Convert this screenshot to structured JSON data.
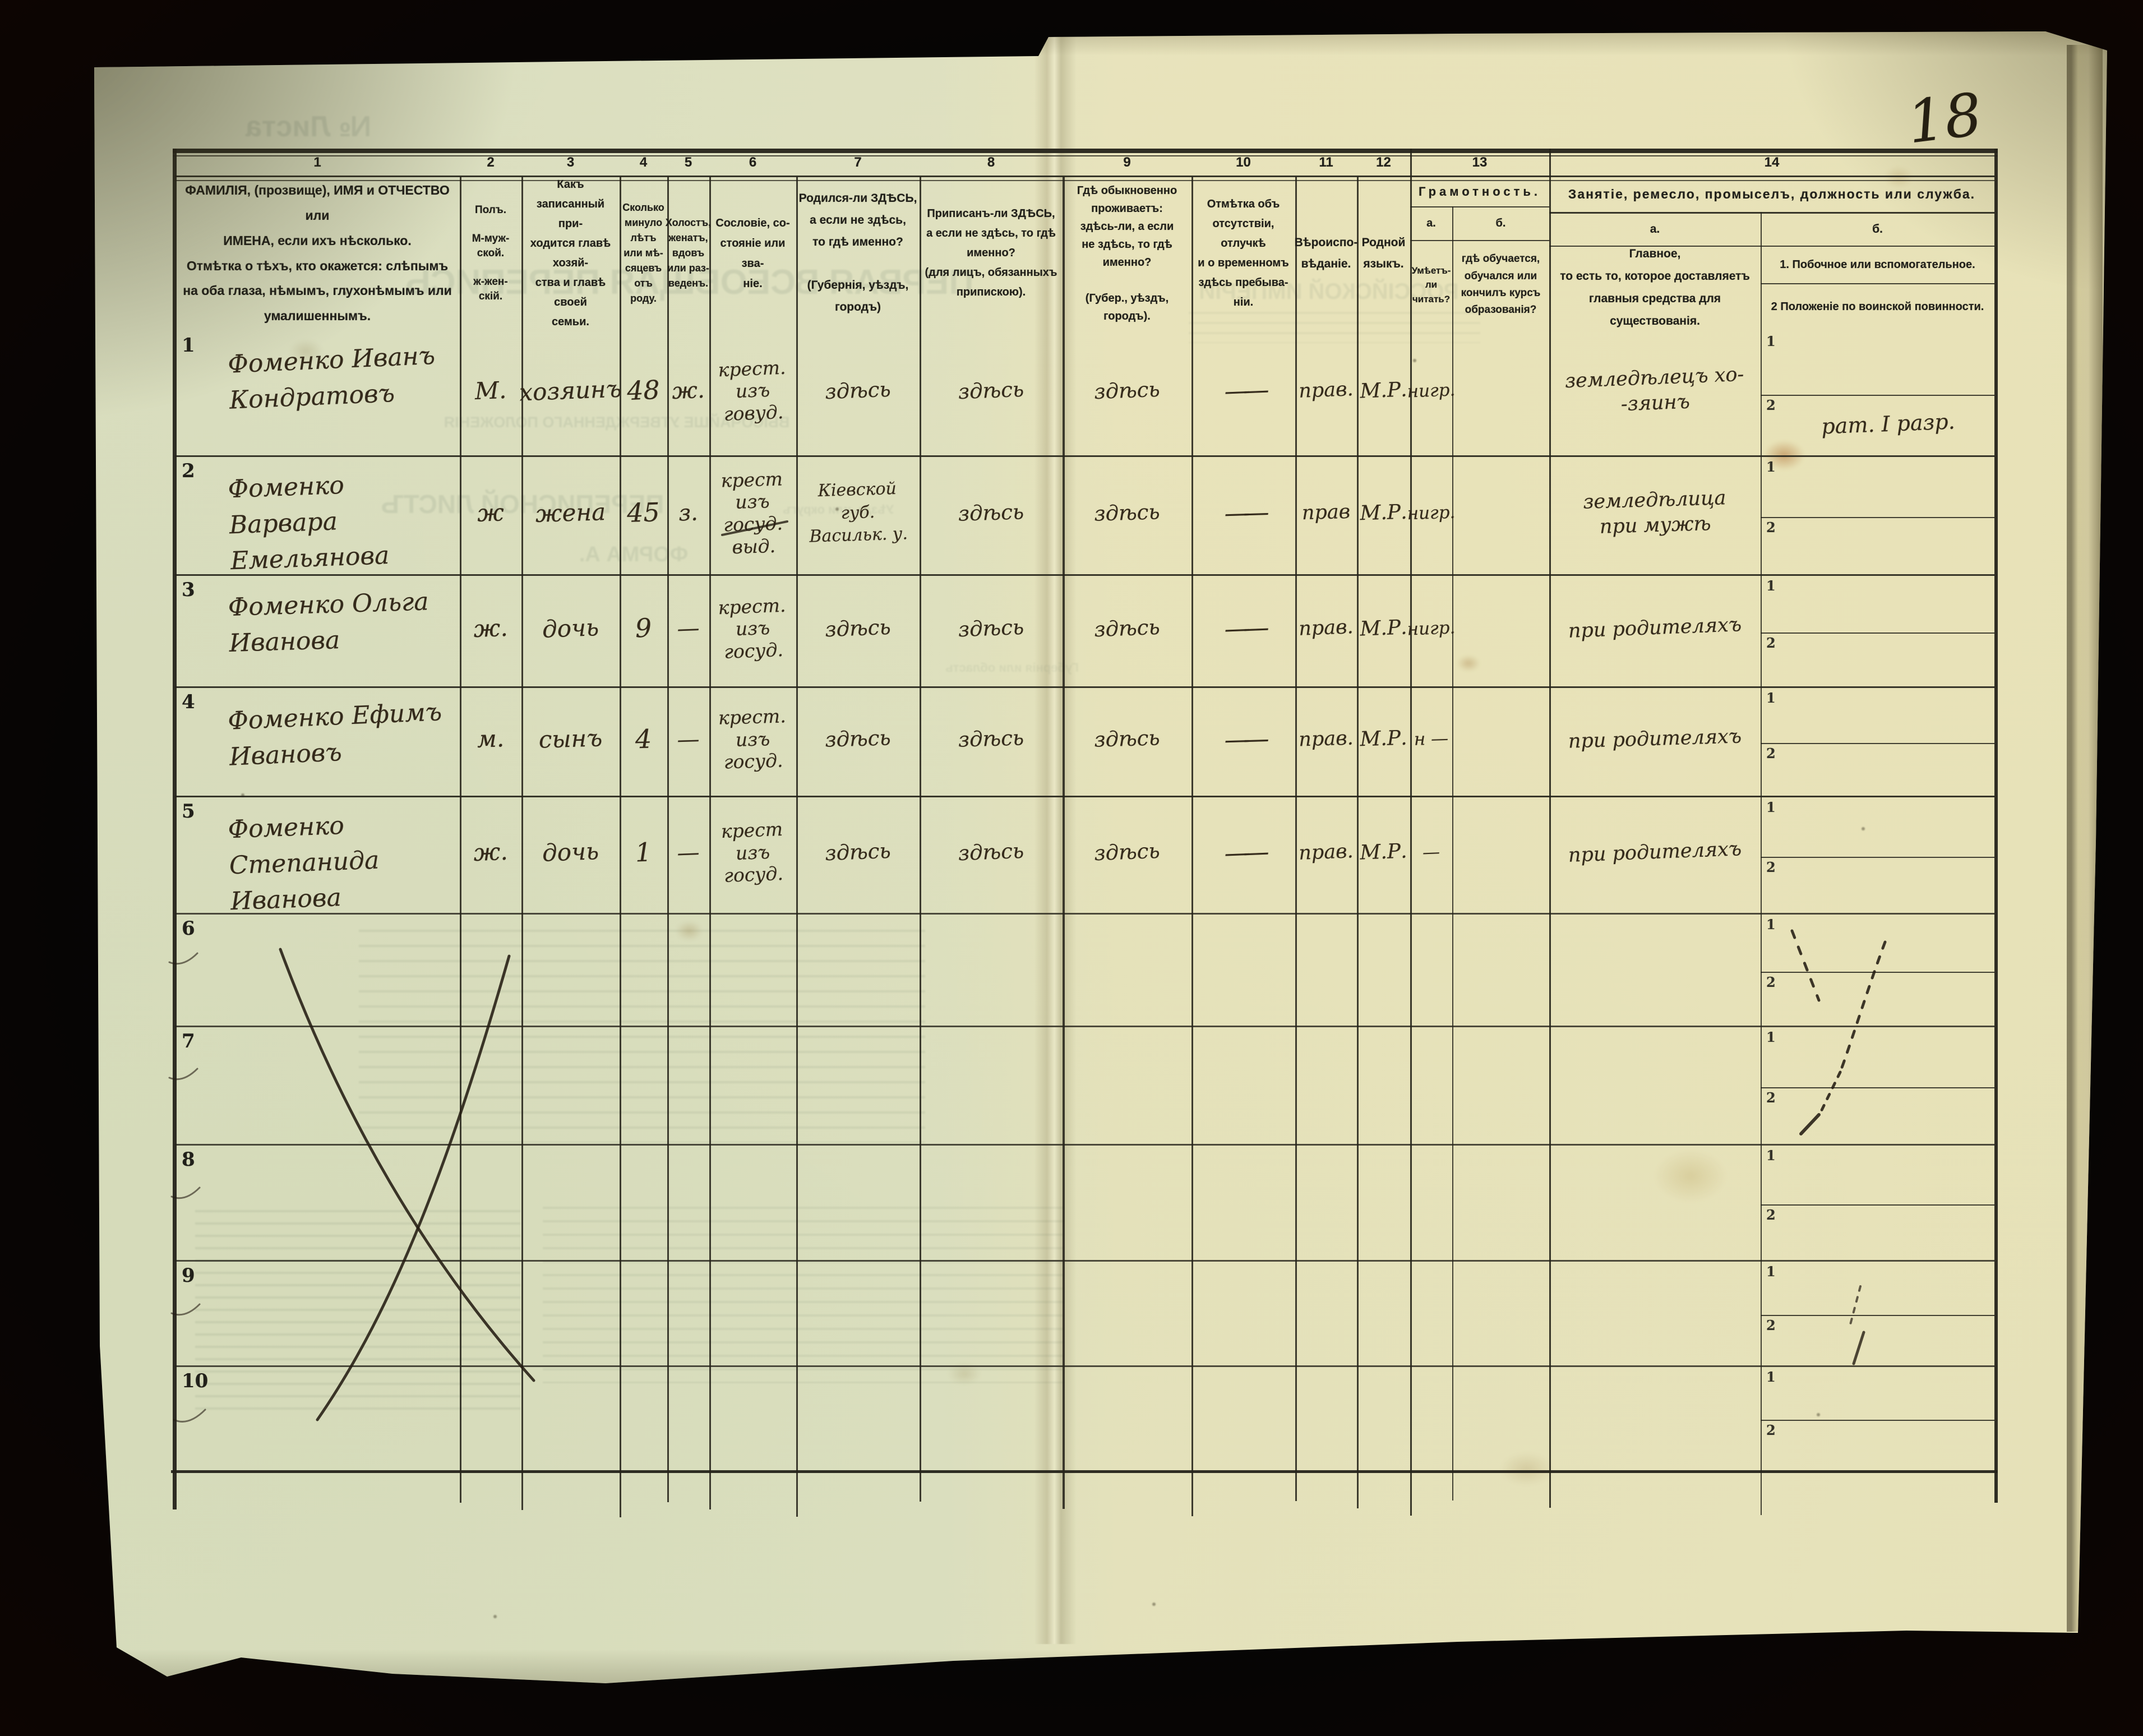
{
  "page": {
    "number": "18"
  },
  "table": {
    "column_numbers": [
      "1",
      "2",
      "3",
      "4",
      "5",
      "6",
      "7",
      "8",
      "9",
      "10",
      "11",
      "12",
      "13",
      "14"
    ],
    "columns": {
      "c1": "ФАМИЛІЯ, (прозвище), ИМЯ и ОТЧЕСТВО или\nИМЕНА, если ихъ нѣсколько.\nОтмѣтка о тѣхъ, кто окажется: слѣпымъ\nна оба глаза, нѣмымъ, глухонѣмымъ или\nумалишеннымъ.",
      "c2": "Полъ.\n\nМ-муж-\nской.\n\nж-жен-\nскій.",
      "c3": "Какъ записанный при-\nходится главѣ хозяй-\nства и главѣ своей\nсемьи.",
      "c4": "Сколько\nминуло\nлѣтъ\nили мѣ-\nсяцевъ\nотъ роду.",
      "c5": "Холостъ,\nженатъ,\nвдовъ\nили раз-\nведенъ.",
      "c6": "Сословіе, со-\nстояніе или зва-\nніе.",
      "c7": "Родился-ли ЗДѢСЬ,\nа если не здѣсь,\nто гдѣ именно?\n\n(Губернія, уѣздъ, городъ)",
      "c8": "Приписанъ-ли ЗДѢСЬ,\nа если не здѣсь, то гдѣ\nименно?\n(для лицъ, обязанныхъ\nприпискою).",
      "c9": "Гдѣ обыкновенно\nпроживаетъ:\nздѣсь-ли, а если\nне здѣсь, то гдѣ\nименно?\n\n(Губер., уѣздъ, городъ).",
      "c10": "Отмѣтка объ\nотсутствіи, отлучкѣ\nи о временномъ\nздѣсь пребыва-\nніи.",
      "c11": "Вѣроиспо-\nвѣданіе.",
      "c12": "Родной\nязыкъ."
    },
    "literacy": {
      "title": "Грамотность.",
      "a_label": "а.",
      "b_label": "б.",
      "a_text": "Умѣетъ-\nли\nчитать?",
      "b_text": "гдѣ обучается,\nобучался или\nкончилъ курсъ\nобразованія?"
    },
    "occupation": {
      "title": "Занятіе, ремесло, промыселъ, должность или служба.",
      "a_label": "а.",
      "b_label": "б.",
      "a_text": "Главное,\nто есть то, которое доставляетъ\nглавныя средства для существованія.",
      "b1_text": "1.  Побочное или вспомогательное.",
      "b2_text": "2  Положеніе по воинской повинности."
    },
    "sub_labels": [
      "1",
      "2"
    ],
    "rows": [
      {
        "num": "1",
        "name": "Фоменко Иванъ\nКондратовъ",
        "sex": "М.",
        "relation": "хозяинъ",
        "age": "48",
        "marital": "ж.",
        "estate": "крест.\nизъ говуд.",
        "born": "здѣсь",
        "registered": "здѣсь",
        "resides": "здѣсь",
        "absence": "——",
        "religion": "прав.",
        "language": "М.Р.",
        "literacy": "нигр.",
        "occ_main": "земледѣлецъ хо-\n-зяинъ",
        "occ_side1": "",
        "occ_side2": "рат. I разр."
      },
      {
        "num": "2",
        "name": "Фоменко Варвара\nЕмельянова",
        "sex": "ж",
        "relation": "жена",
        "age": "45",
        "marital": "з.",
        "estate": "крест\nизъ госуд.\nвыд.",
        "born": "Кіевской\nгуб.\nВасильк. у.",
        "registered": "здѣсь",
        "resides": "здѣсь",
        "absence": "——",
        "religion": "прав",
        "language": "М.Р.",
        "literacy": "нигр.",
        "occ_main": "земледѣлица\nпри мужѣ",
        "occ_side1": "",
        "occ_side2": ""
      },
      {
        "num": "3",
        "name": "Фоменко Ольга\nИванова",
        "sex": "ж.",
        "relation": "дочь",
        "age": "9",
        "marital": "—",
        "estate": "крест.\nизъ госуд.",
        "born": "здѣсь",
        "registered": "здѣсь",
        "resides": "здѣсь",
        "absence": "——",
        "religion": "прав.",
        "language": "М.Р.",
        "literacy": "нигр.",
        "occ_main": "при родителяхъ",
        "occ_side1": "",
        "occ_side2": ""
      },
      {
        "num": "4",
        "name": "Фоменко Ефимъ\nИвановъ",
        "sex": "м.",
        "relation": "сынъ",
        "age": "4",
        "marital": "—",
        "estate": "крест.\nизъ госуд.",
        "born": "здѣсь",
        "registered": "здѣсь",
        "resides": "здѣсь",
        "absence": "——",
        "religion": "прав.",
        "language": "М.Р.",
        "literacy": "н —",
        "occ_main": "при родителяхъ",
        "occ_side1": "",
        "occ_side2": ""
      },
      {
        "num": "5",
        "name": "Фоменко Степанида\nИванова",
        "sex": "ж.",
        "relation": "дочь",
        "age": "1",
        "marital": "—",
        "estate": "крест\nизъ госуд.",
        "born": "здѣсь",
        "registered": "здѣсь",
        "resides": "здѣсь",
        "absence": "——",
        "religion": "прав.",
        "language": "М.Р.",
        "literacy": "—",
        "occ_main": "при родителяхъ",
        "occ_side1": "",
        "occ_side2": ""
      },
      {
        "num": "6",
        "name": "",
        "sex": "",
        "relation": "",
        "age": "",
        "marital": "",
        "estate": "",
        "born": "",
        "registered": "",
        "resides": "",
        "absence": "",
        "religion": "",
        "language": "",
        "literacy": "",
        "occ_main": "",
        "occ_side1": "",
        "occ_side2": ""
      },
      {
        "num": "7",
        "name": "",
        "sex": "",
        "relation": "",
        "age": "",
        "marital": "",
        "estate": "",
        "born": "",
        "registered": "",
        "resides": "",
        "absence": "",
        "religion": "",
        "language": "",
        "literacy": "",
        "occ_main": "",
        "occ_side1": "",
        "occ_side2": ""
      },
      {
        "num": "8",
        "name": "",
        "sex": "",
        "relation": "",
        "age": "",
        "marital": "",
        "estate": "",
        "born": "",
        "registered": "",
        "resides": "",
        "absence": "",
        "religion": "",
        "language": "",
        "literacy": "",
        "occ_main": "",
        "occ_side1": "",
        "occ_side2": ""
      },
      {
        "num": "9",
        "name": "",
        "sex": "",
        "relation": "",
        "age": "",
        "marital": "",
        "estate": "",
        "born": "",
        "registered": "",
        "resides": "",
        "absence": "",
        "religion": "",
        "language": "",
        "literacy": "",
        "occ_main": "",
        "occ_side1": "",
        "occ_side2": ""
      },
      {
        "num": "10",
        "name": "",
        "sex": "",
        "relation": "",
        "age": "",
        "marital": "",
        "estate": "",
        "born": "",
        "registered": "",
        "resides": "",
        "absence": "",
        "religion": "",
        "language": "",
        "literacy": "",
        "occ_main": "",
        "occ_side1": "",
        "occ_side2": ""
      }
    ]
  },
  "bleedthrough": {
    "list_no": "№ Листа",
    "title": "ПЕРВАЯ ВСЕОБЩАЯ ПЕРЕПИСЬ",
    "subtitle": "ВЫСОЧАЙШЕ УТВЕРЖДЕННАГО ПОЛОЖЕНІЯ",
    "sheet": "ПЕРЕПИСНОЙ ЛИСТЪ",
    "form": "ФОРМА А.",
    "empire": "РОССІЙСКОЙ ИМПЕРІИ",
    "uezd": "Уѣздъ или округъ",
    "gub": "Губернія или область"
  }
}
